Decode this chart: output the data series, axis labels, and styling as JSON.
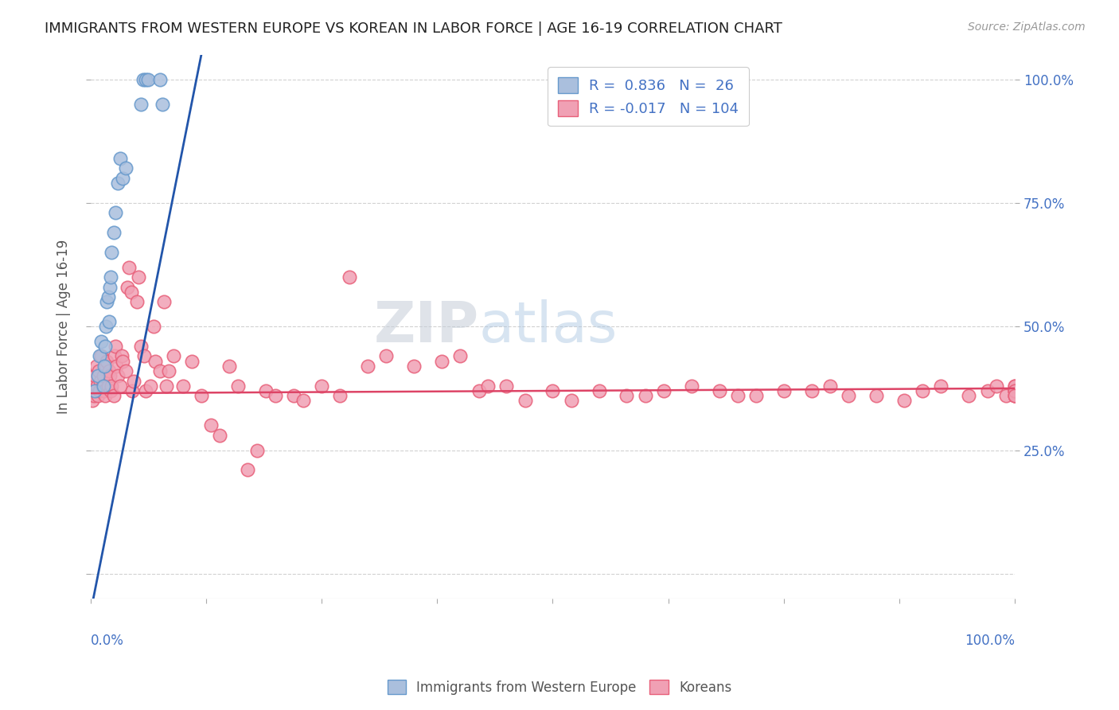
{
  "title": "IMMIGRANTS FROM WESTERN EUROPE VS KOREAN IN LABOR FORCE | AGE 16-19 CORRELATION CHART",
  "source": "Source: ZipAtlas.com",
  "ylabel": "In Labor Force | Age 16-19",
  "blue_color": "#6699cc",
  "blue_fill": "#aabfdd",
  "pink_color": "#e8607a",
  "pink_fill": "#f0a0b4",
  "line_blue": "#2255aa",
  "line_pink": "#dd4466",
  "watermark_zip": "ZIP",
  "watermark_atlas": "atlas",
  "axis_color": "#4472C4",
  "grid_color": "#cccccc",
  "xlim": [
    0.0,
    1.0
  ],
  "ylim": [
    -0.05,
    1.05
  ],
  "blue_scatter_x": [
    0.005,
    0.008,
    0.01,
    0.012,
    0.014,
    0.015,
    0.016,
    0.017,
    0.018,
    0.019,
    0.02,
    0.021,
    0.022,
    0.023,
    0.025,
    0.027,
    0.03,
    0.032,
    0.035,
    0.038,
    0.055,
    0.057,
    0.06,
    0.062,
    0.075,
    0.078
  ],
  "blue_scatter_y": [
    0.37,
    0.4,
    0.44,
    0.47,
    0.38,
    0.42,
    0.46,
    0.5,
    0.55,
    0.56,
    0.51,
    0.58,
    0.6,
    0.65,
    0.69,
    0.73,
    0.79,
    0.84,
    0.8,
    0.82,
    0.95,
    1.0,
    1.0,
    1.0,
    1.0,
    0.95
  ],
  "pink_scatter_x": [
    0.002,
    0.003,
    0.004,
    0.005,
    0.006,
    0.007,
    0.008,
    0.009,
    0.01,
    0.011,
    0.012,
    0.013,
    0.014,
    0.015,
    0.016,
    0.017,
    0.018,
    0.019,
    0.02,
    0.021,
    0.022,
    0.023,
    0.025,
    0.026,
    0.027,
    0.028,
    0.03,
    0.032,
    0.034,
    0.035,
    0.038,
    0.04,
    0.042,
    0.044,
    0.045,
    0.047,
    0.05,
    0.052,
    0.055,
    0.058,
    0.06,
    0.065,
    0.068,
    0.07,
    0.075,
    0.08,
    0.082,
    0.085,
    0.09,
    0.1,
    0.11,
    0.12,
    0.13,
    0.14,
    0.15,
    0.16,
    0.17,
    0.18,
    0.19,
    0.2,
    0.22,
    0.23,
    0.25,
    0.27,
    0.28,
    0.3,
    0.32,
    0.35,
    0.38,
    0.4,
    0.42,
    0.43,
    0.45,
    0.47,
    0.5,
    0.52,
    0.55,
    0.58,
    0.6,
    0.62,
    0.65,
    0.68,
    0.7,
    0.72,
    0.75,
    0.78,
    0.8,
    0.82,
    0.85,
    0.88,
    0.9,
    0.92,
    0.95,
    0.97,
    0.98,
    0.99,
    1.0,
    1.0,
    1.0,
    1.0,
    1.0,
    1.0,
    1.0,
    1.0
  ],
  "pink_scatter_y": [
    0.35,
    0.38,
    0.36,
    0.4,
    0.42,
    0.38,
    0.36,
    0.41,
    0.37,
    0.39,
    0.44,
    0.38,
    0.4,
    0.37,
    0.36,
    0.42,
    0.43,
    0.38,
    0.41,
    0.4,
    0.37,
    0.38,
    0.36,
    0.44,
    0.46,
    0.42,
    0.4,
    0.38,
    0.44,
    0.43,
    0.41,
    0.58,
    0.62,
    0.57,
    0.37,
    0.39,
    0.55,
    0.6,
    0.46,
    0.44,
    0.37,
    0.38,
    0.5,
    0.43,
    0.41,
    0.55,
    0.38,
    0.41,
    0.44,
    0.38,
    0.43,
    0.36,
    0.3,
    0.28,
    0.42,
    0.38,
    0.21,
    0.25,
    0.37,
    0.36,
    0.36,
    0.35,
    0.38,
    0.36,
    0.6,
    0.42,
    0.44,
    0.42,
    0.43,
    0.44,
    0.37,
    0.38,
    0.38,
    0.35,
    0.37,
    0.35,
    0.37,
    0.36,
    0.36,
    0.37,
    0.38,
    0.37,
    0.36,
    0.36,
    0.37,
    0.37,
    0.38,
    0.36,
    0.36,
    0.35,
    0.37,
    0.38,
    0.36,
    0.37,
    0.38,
    0.36,
    0.37,
    0.38,
    0.36,
    0.36,
    0.37,
    0.38,
    0.37,
    0.36
  ],
  "pink_line_x": [
    0.0,
    1.0
  ],
  "pink_line_y": [
    0.365,
    0.375
  ],
  "blue_line_x": [
    0.0,
    0.12
  ],
  "blue_line_y": [
    -0.08,
    1.05
  ]
}
